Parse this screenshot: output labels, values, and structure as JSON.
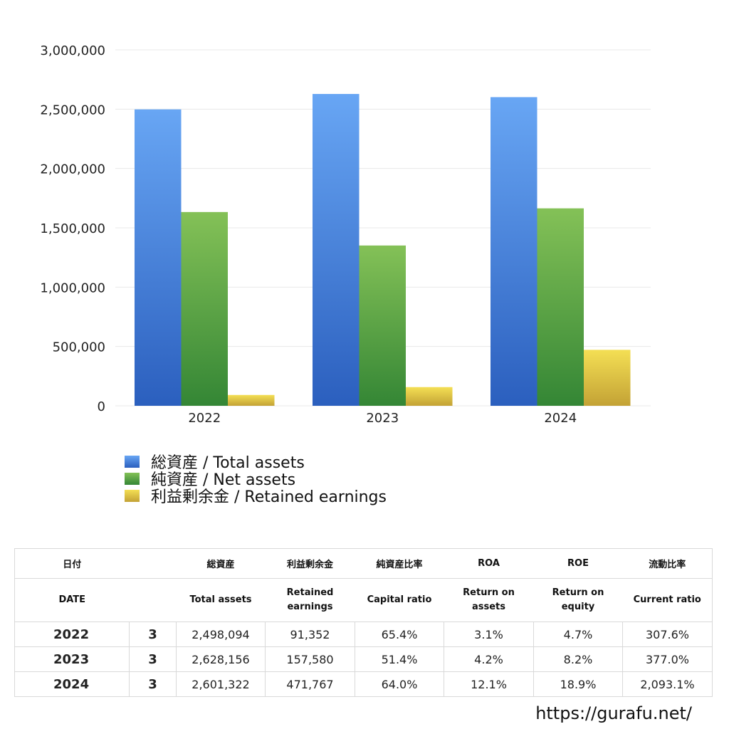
{
  "chart_data": {
    "type": "bar",
    "categories": [
      "2022",
      "2023",
      "2024"
    ],
    "series": [
      {
        "name": "総資産 / Total assets",
        "values": [
          2498094,
          2628156,
          2601322
        ],
        "color_top": "#68a6f4",
        "color_bottom": "#2b5fbe"
      },
      {
        "name": "純資産 / Net assets",
        "values": [
          1633000,
          1351000,
          1664000
        ],
        "color_top": "#84c157",
        "color_bottom": "#348635"
      },
      {
        "name": "利益剰余金 / Retained earnings",
        "values": [
          91352,
          157580,
          471767
        ],
        "color_top": "#f4df54",
        "color_bottom": "#c3a235"
      }
    ],
    "ylim": [
      0,
      3000000
    ],
    "yticks": [
      0,
      500000,
      1000000,
      1500000,
      2000000,
      2500000,
      3000000
    ],
    "ytick_labels": [
      "0",
      "500,000",
      "1,000,000",
      "1,500,000",
      "2,000,000",
      "2,500,000",
      "3,000,000"
    ],
    "grid": true,
    "legend_position": "bottom-left"
  },
  "table": {
    "header_row1": [
      "日付",
      "",
      "総資産",
      "利益剰余金",
      "純資産比率",
      "ROA",
      "ROE",
      "流動比率"
    ],
    "header_row2": [
      "DATE",
      "",
      "Total assets",
      "Retained\nearnings",
      "Capital ratio",
      "Return on\nassets",
      "Return on\nequity",
      "Current ratio"
    ],
    "rows": [
      {
        "year": "2022",
        "month": "3",
        "total_assets": "2,498,094",
        "retained_earnings": "91,352",
        "capital_ratio": "65.4%",
        "roa": "3.1%",
        "roe": "4.7%",
        "current_ratio": "307.6%"
      },
      {
        "year": "2023",
        "month": "3",
        "total_assets": "2,628,156",
        "retained_earnings": "157,580",
        "capital_ratio": "51.4%",
        "roa": "4.2%",
        "roe": "8.2%",
        "current_ratio": "377.0%"
      },
      {
        "year": "2024",
        "month": "3",
        "total_assets": "2,601,322",
        "retained_earnings": "471,767",
        "capital_ratio": "64.0%",
        "roa": "12.1%",
        "roe": "18.9%",
        "current_ratio": "2,093.1%"
      }
    ]
  },
  "footer": {
    "url": "https://gurafu.net/"
  }
}
